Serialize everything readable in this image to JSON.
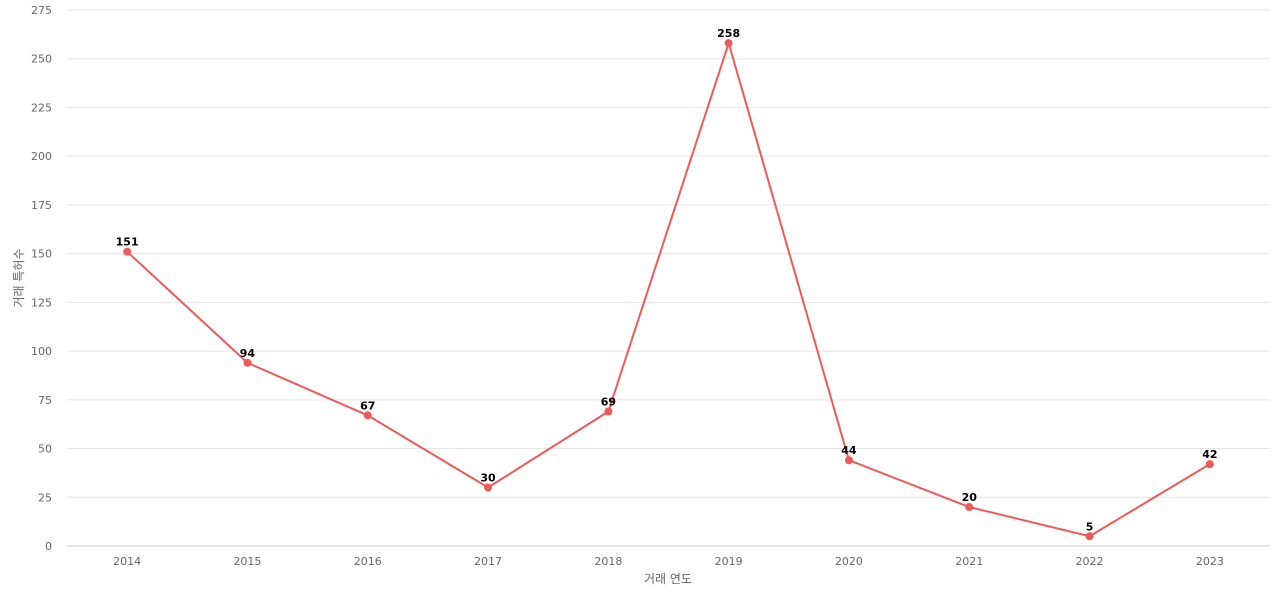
{
  "chart_data": {
    "type": "line",
    "title": "",
    "xlabel": "거래 연도",
    "ylabel": "거래 특허수",
    "categories": [
      "2014",
      "2015",
      "2016",
      "2017",
      "2018",
      "2019",
      "2020",
      "2021",
      "2022",
      "2023"
    ],
    "series": [
      {
        "values": [
          151,
          94,
          67,
          30,
          69,
          258,
          44,
          20,
          5,
          42
        ]
      }
    ],
    "ylim": [
      0,
      275
    ],
    "yticks": [
      0,
      25,
      50,
      75,
      100,
      125,
      150,
      175,
      200,
      225,
      250,
      275
    ],
    "grid": true,
    "legend": "none",
    "data_labels": true,
    "colors": {
      "line": "#ee5a5a",
      "marker": "#ee5a5a",
      "grid": "#e6e6e6"
    }
  }
}
